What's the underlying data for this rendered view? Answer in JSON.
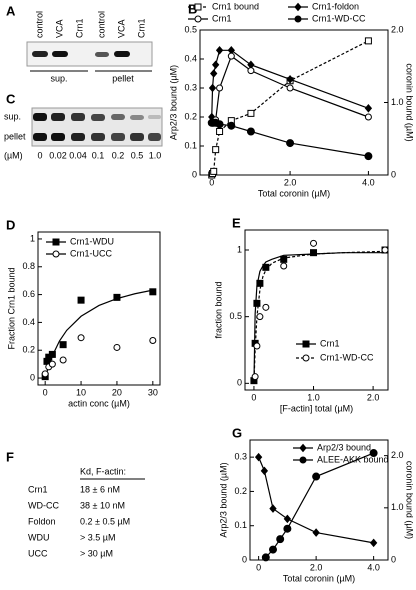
{
  "panel_labels": {
    "a": "A",
    "c": "C",
    "f": "F"
  },
  "gel_a": {
    "lanes": [
      "control",
      "VCA",
      "Crn1",
      "control",
      "VCA",
      "Crn1"
    ],
    "groups": [
      "sup.",
      "pellet"
    ]
  },
  "gel_c": {
    "rows": [
      "sup.",
      "pellet"
    ],
    "unit": "(µM)",
    "concentrations": [
      "0",
      "0.02",
      "0.04",
      "0.1",
      "0.2",
      "0.5",
      "1.0"
    ]
  },
  "table_f": {
    "header": "Kd, F-actin:",
    "rows": [
      [
        "Crn1",
        "18 ± 6 nM"
      ],
      [
        "WD-CC",
        "38 ± 10 nM"
      ],
      [
        "Foldon",
        "0.2  ±  0.5 µM"
      ],
      [
        "WDU",
        "> 3.5 µM"
      ],
      [
        "UCC",
        "> 30 µM"
      ]
    ]
  },
  "chart_data": [
    {
      "type": "line",
      "label": "B",
      "xlabel": "Total coronin (µM)",
      "ylabel": "Arp2/3 bound (µM)",
      "y2label": "coronin bound (µM)",
      "xlim": [
        -0.3,
        4.5
      ],
      "xticks": [
        0,
        {
          "value": 2,
          "label": "2.0"
        },
        {
          "value": 4,
          "label": "4.0"
        }
      ],
      "ylim": [
        0,
        0.5
      ],
      "yticks": [
        0,
        0.1,
        0.2,
        0.3,
        0.4,
        0.5
      ],
      "y2lim": [
        0,
        2
      ],
      "y2ticks": [
        0,
        {
          "value": 1,
          "label": "1.0"
        },
        {
          "value": 2,
          "label": "2.0"
        }
      ],
      "legend": "above",
      "x": [
        0,
        0.02,
        0.05,
        0.1,
        0.2,
        0.5,
        1.0,
        2.0,
        4.0
      ],
      "series": [
        {
          "name": "Crn1 bound",
          "axis": "y2",
          "color": "#000",
          "marker": "square",
          "filled": false,
          "dashed": true,
          "values": [
            0,
            0.02,
            0.05,
            0.35,
            0.6,
            0.75,
            0.85,
            1.3,
            1.85
          ]
        },
        {
          "name": "Crn1-foldon",
          "color": "#000",
          "marker": "diamond",
          "filled": true,
          "dashed": false,
          "values": [
            0.2,
            0.3,
            0.35,
            0.38,
            0.43,
            0.43,
            0.38,
            0.33,
            0.23
          ]
        },
        {
          "name": "Crn1",
          "color": "#000",
          "marker": "circle",
          "filled": false,
          "dashed": false,
          "values": [
            0.18,
            0.18,
            0.18,
            0.19,
            0.3,
            0.41,
            0.36,
            0.3,
            0.2
          ]
        },
        {
          "name": "Crn1-WD-CC",
          "color": "#000",
          "marker": "circle",
          "filled": true,
          "dashed": false,
          "values": [
            0.18,
            0.18,
            0.18,
            0.18,
            0.175,
            0.17,
            0.15,
            0.11,
            0.065
          ]
        }
      ]
    },
    {
      "type": "scatter",
      "label": "D",
      "xlabel": "actin conc (µM)",
      "ylabel": "Fraction Crn1 bound",
      "xlim": [
        -2,
        32
      ],
      "xticks": [
        0,
        10,
        20,
        30
      ],
      "ylim": [
        -0.05,
        1.05
      ],
      "yticks": [
        0,
        0.2,
        0.4,
        0.6,
        0.8,
        1
      ],
      "legend": "top-left",
      "series": [
        {
          "name": "Crn1-WDU",
          "color": "#000",
          "marker": "square",
          "filled": true,
          "dashed": false,
          "x": [
            0,
            0.5,
            1,
            2,
            5,
            10,
            20,
            30
          ],
          "values": [
            0.01,
            0.12,
            0.15,
            0.17,
            0.24,
            0.56,
            0.58,
            0.62
          ],
          "fit": {
            "x": [
              0,
              1,
              2,
              4,
              6,
              10,
              15,
              20,
              25,
              30
            ],
            "values": [
              0,
              0.089,
              0.16,
              0.267,
              0.343,
              0.444,
              0.522,
              0.571,
              0.606,
              0.632
            ]
          }
        },
        {
          "name": "Crn1-UCC",
          "color": "#000",
          "marker": "circle",
          "filled": false,
          "dashed": false,
          "x": [
            0,
            1,
            2,
            5,
            10,
            20,
            30
          ],
          "values": [
            0.03,
            0.08,
            0.1,
            0.13,
            0.29,
            0.22,
            0.27
          ]
        }
      ]
    },
    {
      "type": "scatter",
      "label": "E",
      "xlabel": "[F-actin] total (µM)",
      "ylabel": "fraction bound",
      "xlim": [
        -0.15,
        2.25
      ],
      "xticks": [
        0,
        {
          "value": 1,
          "label": "1.0"
        },
        {
          "value": 2,
          "label": "2.0"
        }
      ],
      "ylim": [
        -0.05,
        1.15
      ],
      "yticks": [
        0,
        0.5,
        1
      ],
      "legend": "bottom-right",
      "series": [
        {
          "name": "Crn1",
          "color": "#000",
          "marker": "square",
          "filled": true,
          "dashed": false,
          "x": [
            0,
            0.02,
            0.05,
            0.1,
            0.2,
            0.5,
            1.0,
            2.2
          ],
          "values": [
            0.02,
            0.3,
            0.6,
            0.75,
            0.87,
            0.93,
            0.98,
            1.0
          ],
          "fit": {
            "x": [
              0,
              0.02,
              0.05,
              0.1,
              0.15,
              0.2,
              0.3,
              0.5,
              1,
              1.5,
              2.2
            ],
            "values": [
              0,
              0.52,
              0.73,
              0.84,
              0.88,
              0.91,
              0.93,
              0.96,
              0.97,
              0.98,
              0.98
            ]
          }
        },
        {
          "name": "Crn1-WD-CC",
          "color": "#000",
          "marker": "circle",
          "filled": false,
          "dashed": true,
          "x": [
            0.02,
            0.05,
            0.1,
            0.2,
            0.5,
            1.0,
            2.2
          ],
          "values": [
            0.05,
            0.28,
            0.5,
            0.57,
            0.88,
            1.05,
            1.0
          ],
          "fit": {
            "x": [
              0,
              0.02,
              0.05,
              0.1,
              0.15,
              0.2,
              0.3,
              0.5,
              1,
              1.5,
              2.2
            ],
            "values": [
              0,
              0.25,
              0.5,
              0.7,
              0.8,
              0.85,
              0.9,
              0.94,
              0.97,
              0.98,
              0.99
            ]
          }
        }
      ]
    },
    {
      "type": "line",
      "label": "G",
      "xlabel": "Total coronin (µM)",
      "ylabel": "Arp2/3 bound (µM)",
      "y2label": "coronin bound (µM)",
      "xlim": [
        -0.3,
        4.5
      ],
      "xticks": [
        0,
        {
          "value": 2,
          "label": "2.0"
        },
        {
          "value": 4,
          "label": "4.0"
        }
      ],
      "ylim": [
        0,
        0.35
      ],
      "yticks": [
        0,
        0.1,
        0.2,
        0.3
      ],
      "y2lim": [
        0,
        2.3
      ],
      "y2ticks": [
        0,
        {
          "value": 1,
          "label": "1.0"
        },
        {
          "value": 2,
          "label": "2.0"
        }
      ],
      "legend": "top-right",
      "series": [
        {
          "name": "Arp2/3 bound",
          "color": "#000",
          "marker": "diamond",
          "filled": true,
          "dashed": false,
          "x": [
            0,
            0.2,
            0.5,
            1.0,
            2.0,
            4.0
          ],
          "values": [
            0.3,
            0.26,
            0.15,
            0.12,
            0.08,
            0.05
          ]
        },
        {
          "name": "ALEE-AKK bound",
          "axis": "y2",
          "color": "#000",
          "marker": "circle",
          "filled": true,
          "dashed": false,
          "x": [
            0.25,
            0.5,
            0.75,
            1.0,
            2.0,
            4.0
          ],
          "values": [
            0.05,
            0.2,
            0.4,
            0.6,
            1.6,
            2.05
          ]
        }
      ]
    }
  ]
}
